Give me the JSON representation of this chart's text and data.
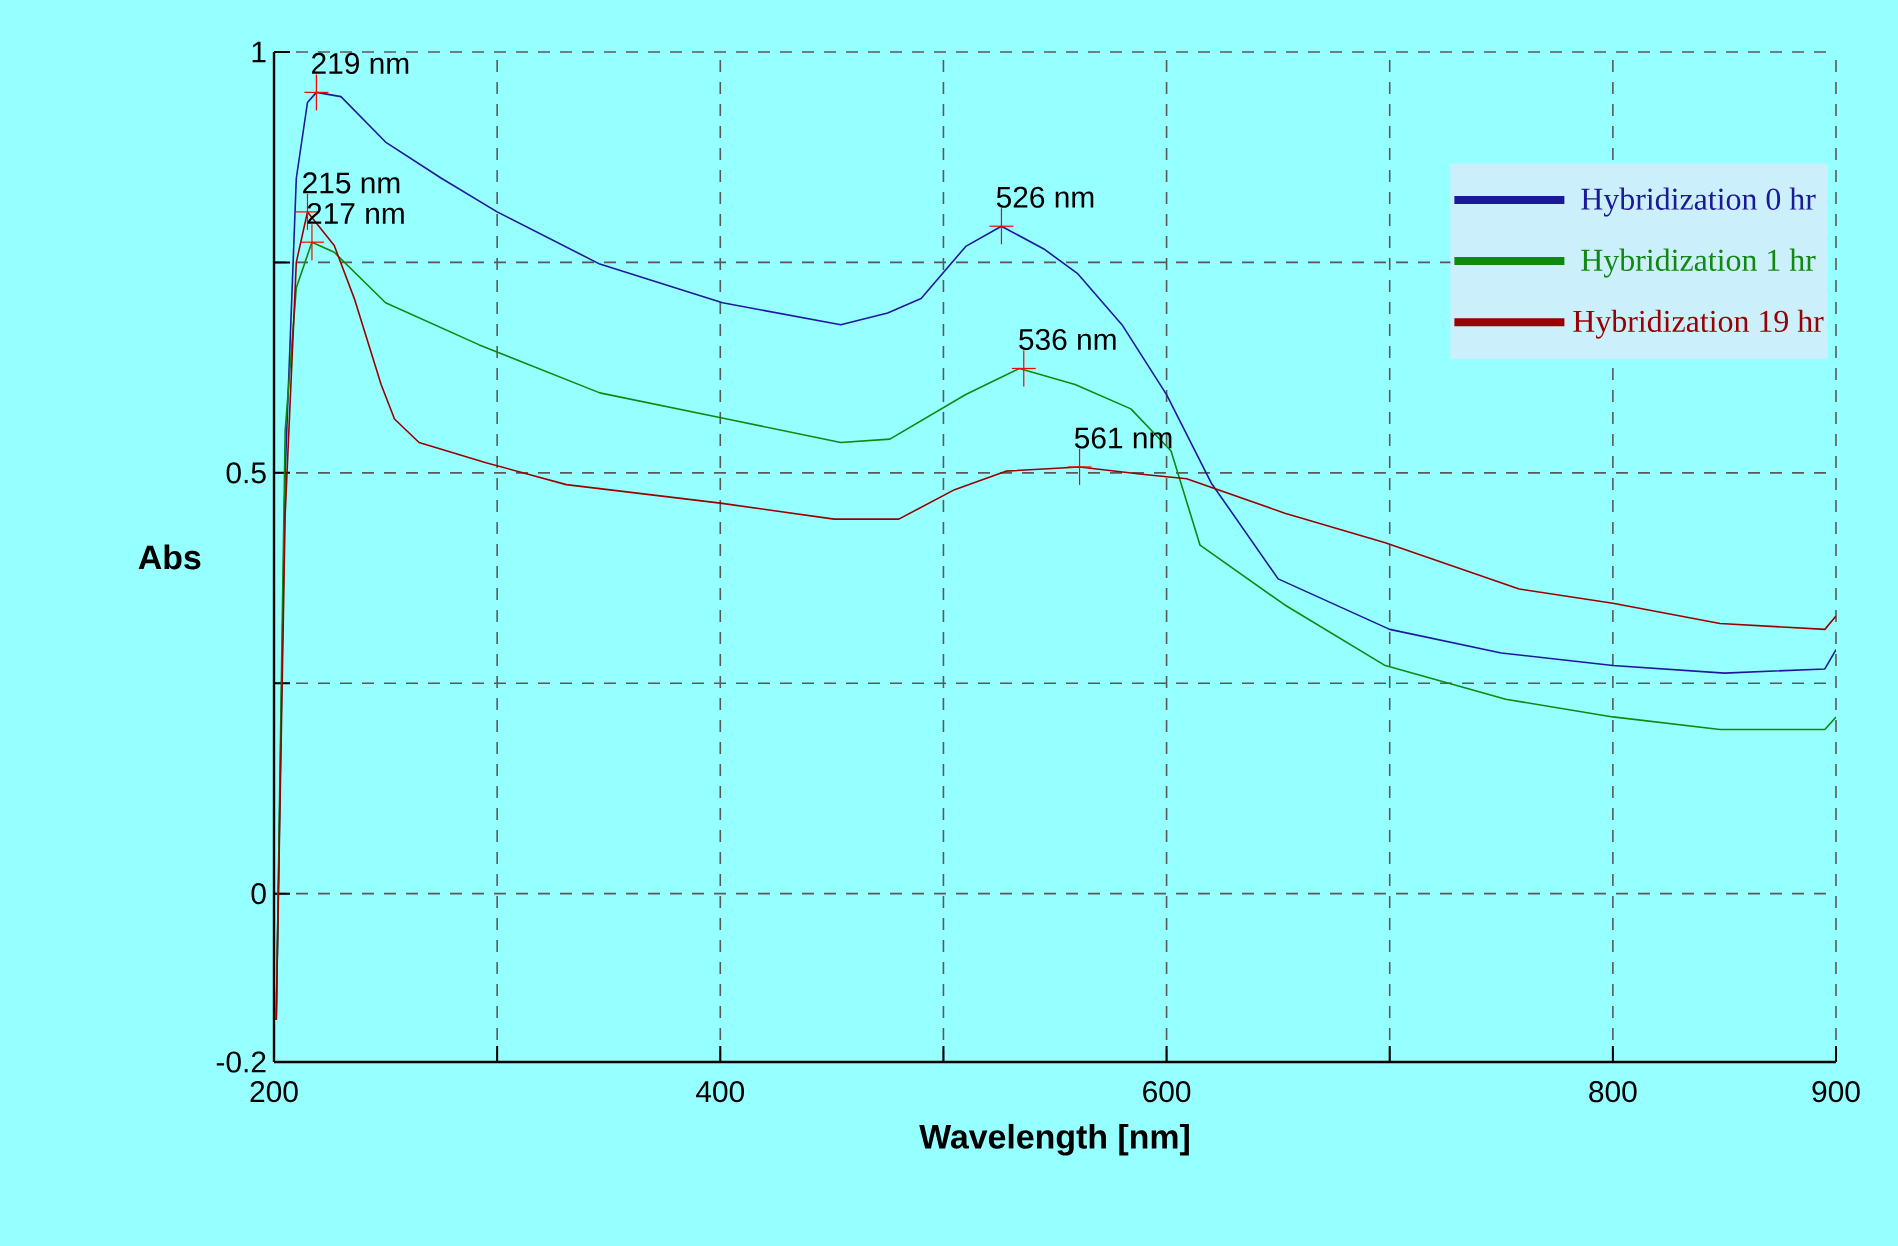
{
  "chart_data": {
    "type": "line",
    "xlabel": "Wavelength [nm]",
    "ylabel": "Abs",
    "xlim": [
      200,
      900
    ],
    "ylim": [
      -0.2,
      1
    ],
    "xticks": [
      200,
      {
        "value": 300,
        "label": null
      },
      400,
      {
        "value": 500,
        "label": null
      },
      600,
      {
        "value": 700,
        "label": null
      },
      800,
      900
    ],
    "yticks": [
      -0.2,
      0,
      {
        "value": 0.25,
        "label": null
      },
      0.5,
      {
        "value": 0.75,
        "label": null
      },
      1
    ],
    "grid": true,
    "legend": "top right",
    "line_style": "solid",
    "series": [
      {
        "name": "Hybridization 0 hr",
        "color": "#1a1a99",
        "x": [
          201,
          205,
          210,
          215,
          219,
          230,
          250,
          275,
          300,
          346,
          401,
          454,
          475,
          490,
          510,
          526,
          545,
          560,
          580,
          600,
          620,
          650,
          700,
          750,
          800,
          850,
          895,
          900
        ],
        "values": [
          -0.15,
          0.5,
          0.85,
          0.94,
          0.952,
          0.947,
          0.893,
          0.85,
          0.81,
          0.748,
          0.702,
          0.676,
          0.69,
          0.707,
          0.769,
          0.793,
          0.766,
          0.737,
          0.676,
          0.593,
          0.488,
          0.374,
          0.314,
          0.286,
          0.271,
          0.262,
          0.267,
          0.29
        ]
      },
      {
        "name": "Hybridization 1 hr",
        "color": "#118811",
        "x": [
          201,
          205,
          210,
          217,
          227,
          250,
          292,
          346,
          403,
          454,
          476,
          510,
          534,
          559,
          584,
          602,
          615,
          653,
          698,
          752,
          800,
          848,
          895,
          900
        ],
        "values": [
          -0.15,
          0.55,
          0.72,
          0.774,
          0.762,
          0.702,
          0.652,
          0.595,
          0.564,
          0.536,
          0.54,
          0.593,
          0.624,
          0.605,
          0.576,
          0.526,
          0.414,
          0.343,
          0.271,
          0.231,
          0.21,
          0.195,
          0.195,
          0.21
        ]
      },
      {
        "name": "Hybridization 19 hr",
        "color": "#990000",
        "x": [
          201,
          205,
          210,
          215,
          227,
          236,
          248,
          254,
          265,
          295,
          331,
          400,
          451,
          480,
          505,
          528,
          561,
          590,
          609,
          653,
          698,
          758,
          800,
          848,
          895,
          900
        ],
        "values": [
          -0.15,
          0.45,
          0.75,
          0.81,
          0.77,
          0.707,
          0.605,
          0.564,
          0.536,
          0.512,
          0.486,
          0.464,
          0.445,
          0.445,
          0.48,
          0.502,
          0.507,
          0.498,
          0.493,
          0.452,
          0.417,
          0.362,
          0.345,
          0.321,
          0.314,
          0.33
        ]
      }
    ],
    "annotations": [
      {
        "text": "219 nm",
        "x": 219,
        "y": 0.952
      },
      {
        "text": "215 nm",
        "x": 215,
        "y": 0.81
      },
      {
        "text": "217 nm",
        "x": 217,
        "y": 0.774
      },
      {
        "text": "526 nm",
        "x": 526,
        "y": 0.793
      },
      {
        "text": "536 nm",
        "x": 536,
        "y": 0.624
      },
      {
        "text": "561 nm",
        "x": 561,
        "y": 0.507
      }
    ]
  }
}
